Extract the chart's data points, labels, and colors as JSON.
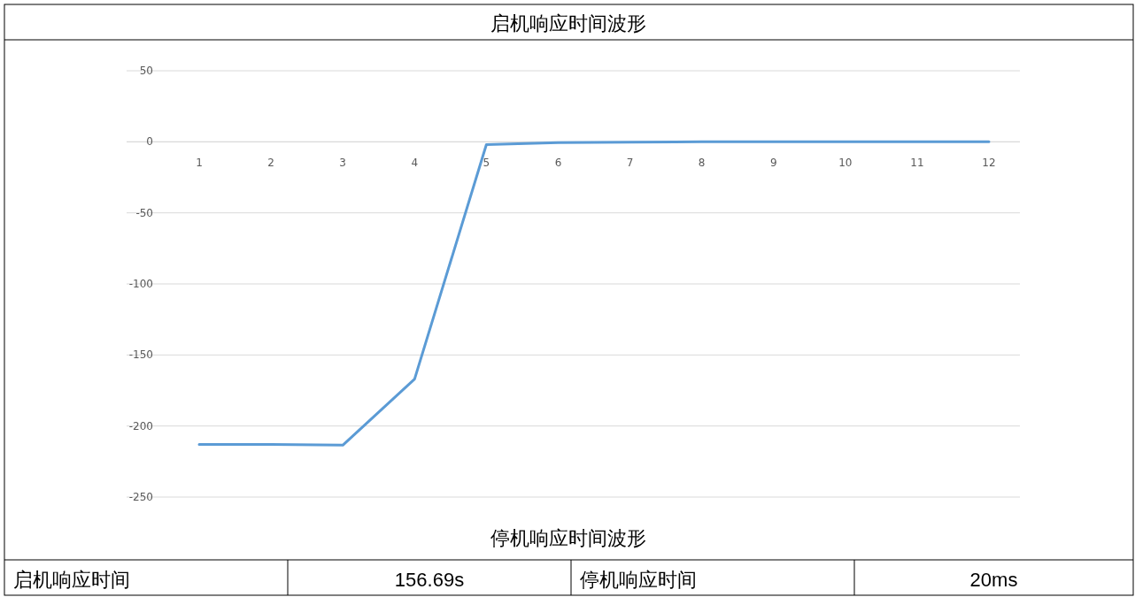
{
  "chart_data": {
    "type": "line",
    "title": "启机响应时间波形",
    "categories": [
      "1",
      "2",
      "3",
      "4",
      "5",
      "6",
      "7",
      "8",
      "9",
      "10",
      "11",
      "12"
    ],
    "series": [
      {
        "color": "#5b9bd5",
        "values": [
          -213,
          -213,
          -213.5,
          -167,
          -2,
          -0.5,
          -0.3,
          0,
          0,
          0,
          0,
          0
        ]
      }
    ],
    "ylim": [
      -250,
      50
    ],
    "yticks": [
      -250,
      -200,
      -150,
      -100,
      -50,
      0,
      50
    ],
    "grid": "y",
    "marker": "none",
    "line_style": "solid",
    "annotations": [
      "停机响应时间波形",
      "启机响应时间",
      "156.69s",
      "停机响应时间",
      "20ms"
    ]
  }
}
